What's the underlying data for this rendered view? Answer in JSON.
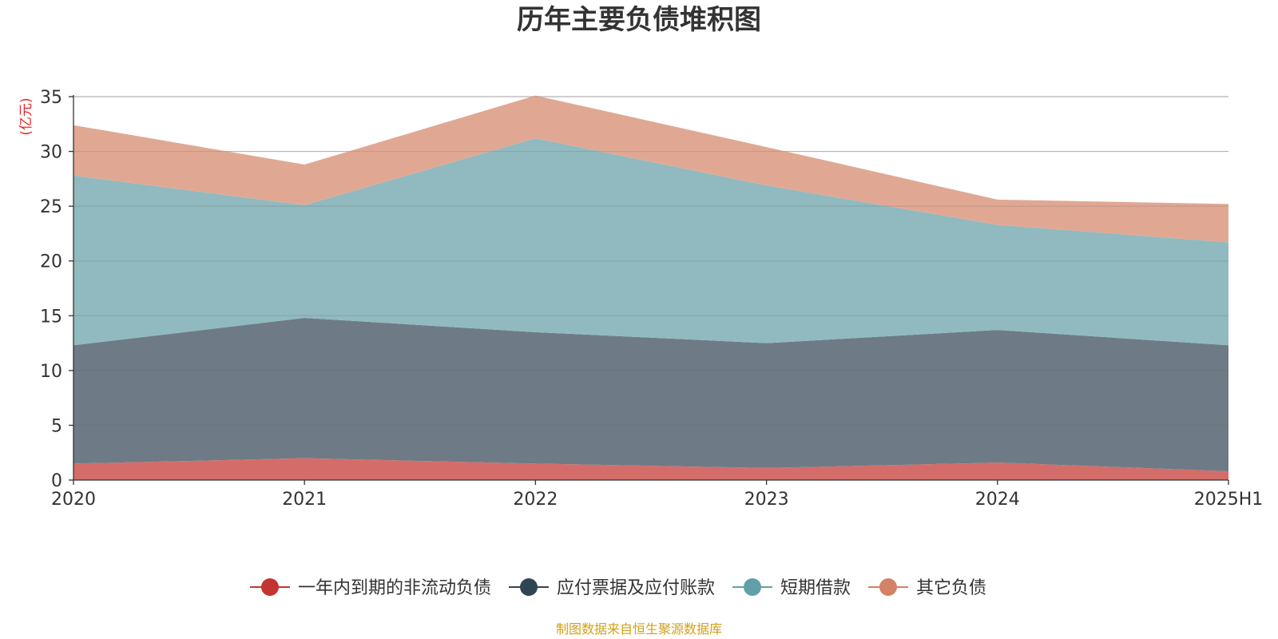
{
  "chart_data": {
    "type": "area",
    "title": "历年主要负债堆积图",
    "unit_label": "(亿元)",
    "x": [
      "2020",
      "2021",
      "2022",
      "2023",
      "2024",
      "2025H1"
    ],
    "ylim": [
      0,
      35
    ],
    "yticks": [
      0,
      5,
      10,
      15,
      20,
      25,
      30,
      35
    ],
    "grid": true,
    "stacked": true,
    "legend_position": "bottom",
    "series": [
      {
        "name": "一年内到期的非流动负债",
        "color": "#c23531",
        "fill": "#d46d6a",
        "values": [
          1.5,
          2.0,
          1.5,
          1.1,
          1.6,
          0.8
        ]
      },
      {
        "name": "应付票据及应付账款",
        "color": "#2f4554",
        "fill": "#6e7b86",
        "values": [
          10.8,
          12.8,
          12.0,
          11.4,
          12.1,
          11.5
        ]
      },
      {
        "name": "短期借款",
        "color": "#61a0a8",
        "fill": "#90babf",
        "values": [
          15.5,
          10.3,
          17.7,
          14.4,
          9.6,
          9.4
        ]
      },
      {
        "name": "其它负债",
        "color": "#d48265",
        "fill": "#e0a893",
        "values": [
          4.6,
          3.7,
          3.9,
          3.5,
          2.3,
          3.5
        ]
      }
    ]
  },
  "footer": {
    "source": "制图数据来自恒生聚源数据库"
  }
}
